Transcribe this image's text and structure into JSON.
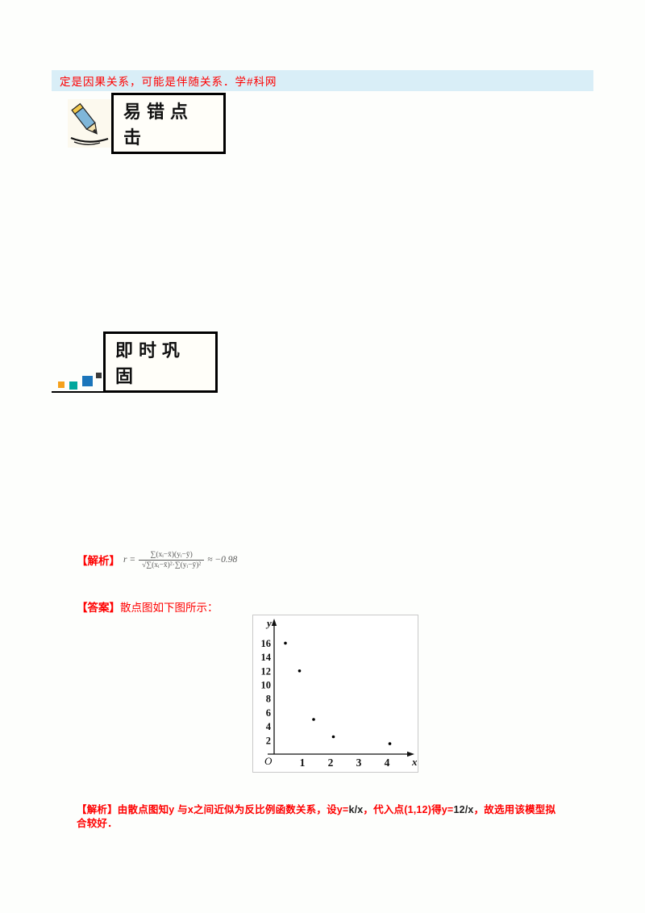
{
  "banner": {
    "text": "定是因果关系，可能是伴随关系．学#科网"
  },
  "badges": {
    "yicuo_label": "易错点击",
    "jishi_label": "即时巩固",
    "square_colors": {
      "orange": "#f5a11c",
      "teal": "#00a79d",
      "blue": "#1b75bb",
      "dark": "#3a3a3a"
    }
  },
  "analysis": {
    "label": "【解析】",
    "formula": {
      "lead": "r =",
      "numerator": "∑(xᵢ−x̄)(yᵢ−ȳ)",
      "denominator": "√∑(xᵢ−x̄)²·∑(yᵢ−ȳ)²",
      "tail": "≈ −0.98"
    }
  },
  "answer": {
    "label": "【答案】",
    "text": "散点图如下图所示："
  },
  "chart_data": {
    "type": "scatter",
    "points": [
      [
        0.4,
        16
      ],
      [
        0.9,
        12
      ],
      [
        1.4,
        5
      ],
      [
        2.1,
        2.5
      ],
      [
        4.1,
        1.5
      ]
    ],
    "x_ticks": [
      1,
      2,
      3,
      4
    ],
    "y_ticks": [
      2,
      4,
      6,
      8,
      10,
      12,
      14,
      16
    ],
    "xlabel": "x",
    "ylabel": "y",
    "origin_label": "O",
    "xlim": [
      0,
      4.7
    ],
    "ylim": [
      0,
      18
    ],
    "grid": false,
    "legend": null,
    "title": ""
  },
  "solution": {
    "segments": [
      {
        "text": "【解析】由散点图知y 与x之间近似为反比例函数关系，设y=",
        "color": "#fe0000"
      },
      {
        "text": "k/x",
        "color": "#222222"
      },
      {
        "text": "，代入点(1,12)得y=",
        "color": "#fe0000"
      },
      {
        "text": "12/x",
        "color": "#222222"
      },
      {
        "text": "，故选用该模型拟合较好．",
        "color": "#fe0000"
      }
    ]
  },
  "colors": {
    "accent_red": "#fe0000",
    "banner_bg": "#d9eef7",
    "ink": "#111111"
  }
}
